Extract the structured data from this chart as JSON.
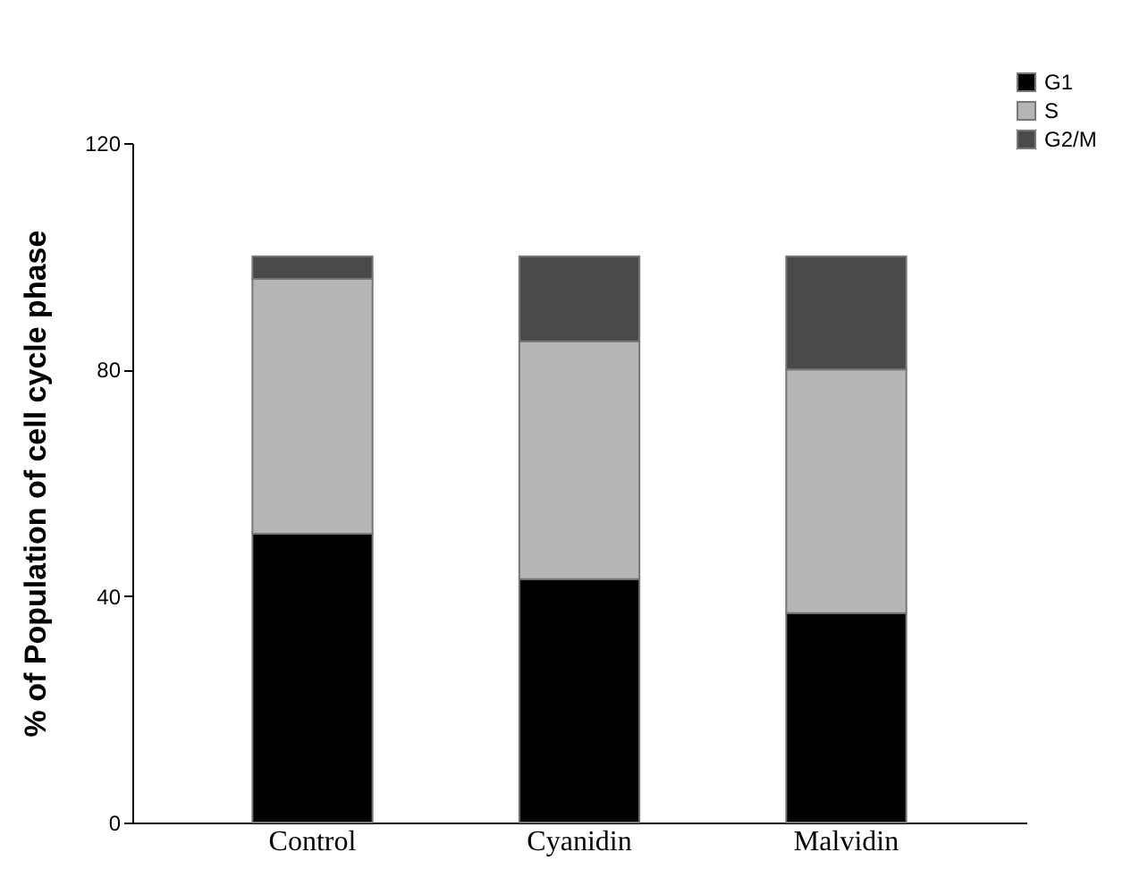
{
  "chart_data": {
    "type": "bar",
    "stacked": true,
    "ylabel": "% of Population of cell cycle phase",
    "categories": [
      "Control",
      "Cyanidin",
      "Malvidin"
    ],
    "series": [
      {
        "name": "G1",
        "color": "#000000",
        "values": [
          51,
          43,
          37
        ]
      },
      {
        "name": "S",
        "color": "#b6b6b6",
        "values": [
          45,
          42,
          43
        ]
      },
      {
        "name": "G2/M",
        "color": "#4a4a4a",
        "values": [
          4,
          15,
          20
        ]
      }
    ],
    "ylim": [
      0,
      120
    ],
    "yticks": [
      0,
      40,
      80,
      120
    ],
    "grid": false,
    "legend": "top right"
  }
}
